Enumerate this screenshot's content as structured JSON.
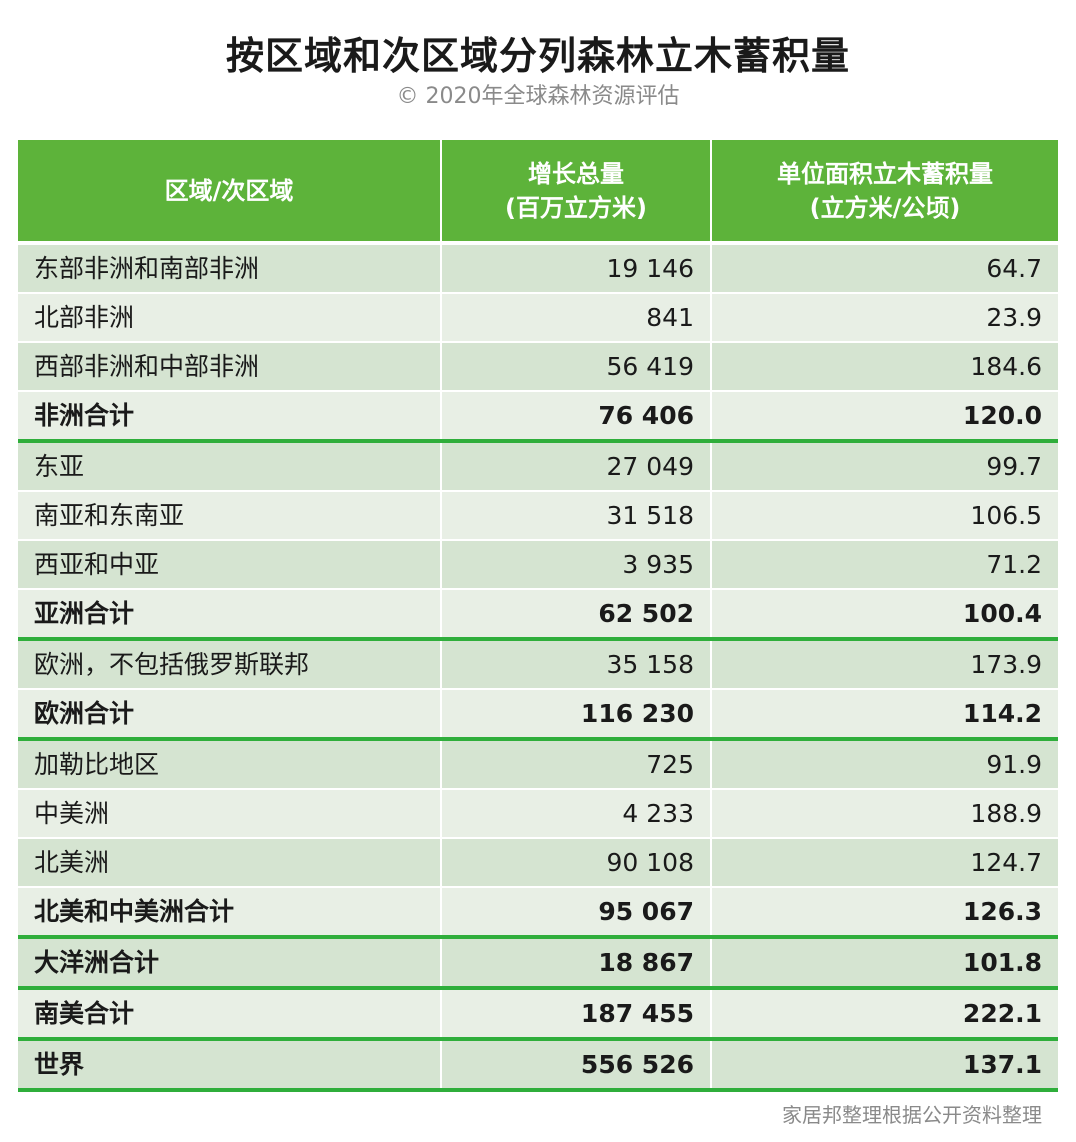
{
  "title": "按区域和次区域分列森林立木蓄积量",
  "subtitle": "© 2020年全球森林资源评估",
  "table": {
    "headers": {
      "region": "区域/次区域",
      "growth_line1": "增长总量",
      "growth_line2": "(百万立方米)",
      "density_line1": "单位面积立木蓄积量",
      "density_line2": "(立方米/公顷)"
    },
    "rows": [
      {
        "region": "东部非洲和南部非洲",
        "growth": "19 146",
        "density": "64.7"
      },
      {
        "region": "北部非洲",
        "growth": "841",
        "density": "23.9"
      },
      {
        "region": "西部非洲和中部非洲",
        "growth": "56 419",
        "density": "184.6"
      },
      {
        "region": "非洲合计",
        "growth": "76 406",
        "density": "120.0"
      },
      {
        "region": "东亚",
        "growth": "27 049",
        "density": "99.7"
      },
      {
        "region": "南亚和东南亚",
        "growth": "31 518",
        "density": "106.5"
      },
      {
        "region": "西亚和中亚",
        "growth": "3 935",
        "density": "71.2"
      },
      {
        "region": "亚洲合计",
        "growth": "62 502",
        "density": "100.4"
      },
      {
        "region": "欧洲，不包括俄罗斯联邦",
        "growth": "35 158",
        "density": "173.9"
      },
      {
        "region": "欧洲合计",
        "growth": "116 230",
        "density": "114.2"
      },
      {
        "region": "加勒比地区",
        "growth": "725",
        "density": "91.9"
      },
      {
        "region": "中美洲",
        "growth": "4 233",
        "density": "188.9"
      },
      {
        "region": "北美洲",
        "growth": "90 108",
        "density": "124.7"
      },
      {
        "region": "北美和中美洲合计",
        "growth": "95 067",
        "density": "126.3"
      },
      {
        "region": "大洋洲合计",
        "growth": "18 867",
        "density": "101.8"
      },
      {
        "region": "南美合计",
        "growth": "187 455",
        "density": "222.1"
      },
      {
        "region": "世界",
        "growth": "556 526",
        "density": "137.1"
      }
    ]
  },
  "footer": "家居邦整理根据公开资料整理",
  "colors": {
    "header_green": "#5db33a",
    "separator_green": "#2fae3b",
    "row_dark": "#d5e4d1",
    "row_light": "#e8efe5"
  }
}
